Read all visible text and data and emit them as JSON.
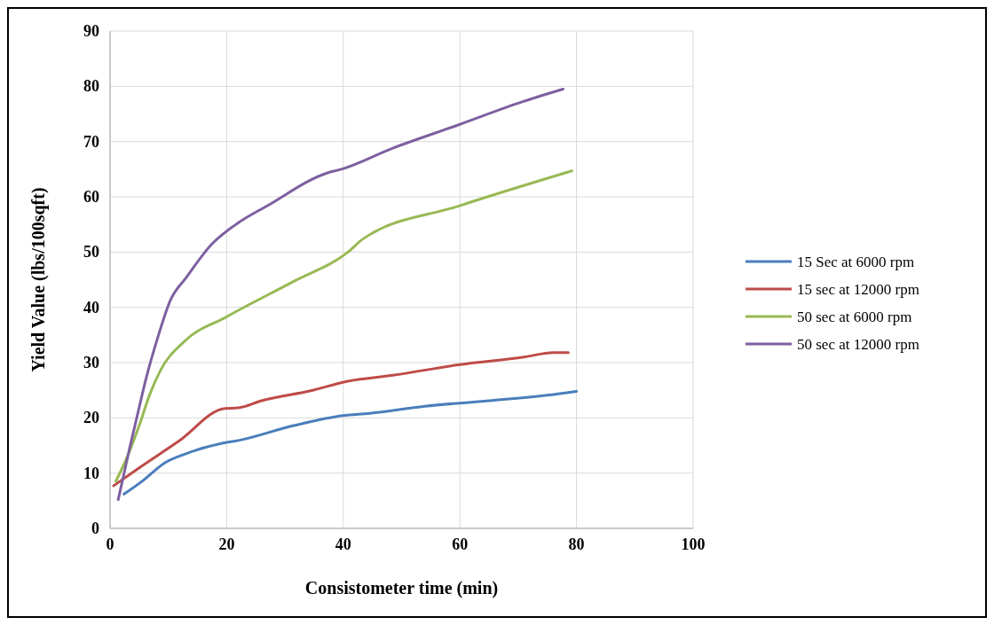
{
  "chart_data": {
    "type": "line",
    "xlabel": "Consistometer time (min)",
    "ylabel": "Yield Value (lbs/100sqft)",
    "xlim": [
      0,
      100
    ],
    "xticks": [
      0,
      20,
      40,
      60,
      80,
      100
    ],
    "ylim": [
      0,
      90
    ],
    "yticks": [
      0,
      10,
      20,
      30,
      40,
      50,
      60,
      70,
      80,
      90
    ],
    "grid": true,
    "legend": "right",
    "marker": "none",
    "line_style": "solid",
    "series": [
      {
        "name": "15 Sec at 6000 rpm",
        "color": "#4a7ebb",
        "x": [
          2.4,
          5.6,
          9.3,
          13,
          19.2,
          22,
          31.5,
          40,
          44.5,
          54,
          65,
          76.6,
          80
        ],
        "values": [
          6.2,
          8.6,
          11.8,
          13.5,
          15.4,
          15.9,
          18.6,
          20.4,
          20.8,
          22.1,
          23.1,
          24.3,
          24.8
        ]
      },
      {
        "name": "15 sec at 12000 rpm",
        "color": "#be4b48",
        "x": [
          0.6,
          4.5,
          11.8,
          19.7,
          22,
          26,
          34.4,
          40.6,
          48.5,
          59.7,
          71,
          76,
          78.6
        ],
        "values": [
          7.7,
          10.6,
          15.8,
          21.7,
          21.8,
          23.1,
          24.9,
          26.6,
          27.7,
          29.6,
          31,
          31.8,
          31.8
        ]
      },
      {
        "name": "50 sec at 6000 rpm",
        "color": "#98b954",
        "x": [
          1,
          3.4,
          5,
          6.8,
          8.7,
          12.7,
          20,
          31.5,
          40.8,
          43.4,
          59.7,
          79.2
        ],
        "values": [
          8.5,
          14.1,
          18.6,
          24.2,
          28.7,
          33.8,
          38.3,
          44.7,
          50,
          52.4,
          58.3,
          64.7
        ]
      },
      {
        "name": "50 sec at 12000 rpm",
        "color": "#7d60a0",
        "x": [
          1.4,
          3.4,
          4.8,
          6.2,
          8.2,
          10.4,
          13,
          17.5,
          22,
          27,
          37.2,
          39.7,
          48.5,
          59.7,
          71,
          77.7
        ],
        "values": [
          5.2,
          14.7,
          21,
          27.2,
          34.6,
          41.4,
          45.3,
          51.5,
          55.3,
          58.4,
          64.3,
          65,
          68.8,
          73,
          77.3,
          79.5
        ]
      }
    ]
  }
}
